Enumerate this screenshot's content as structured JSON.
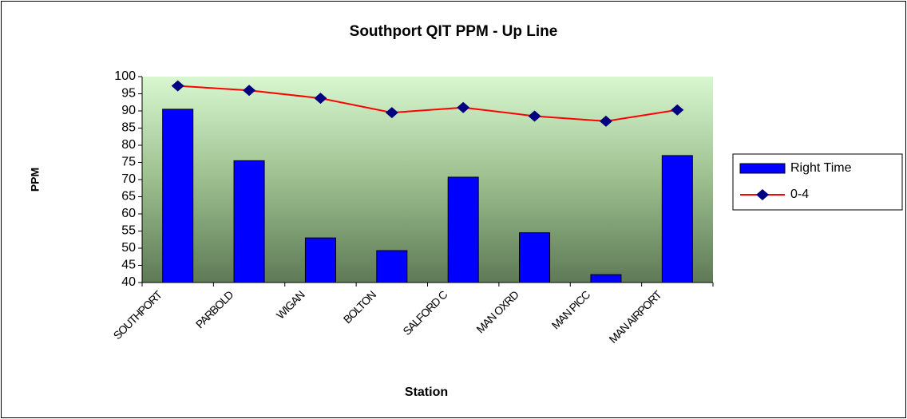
{
  "chart_data": {
    "type": "bar_line",
    "title": "Southport QIT PPM - Up Line",
    "x_label": "Station",
    "y_label": "PPM",
    "categories": [
      "SOUTHPORT",
      "PARBOLD",
      "WIGAN",
      "BOLTON",
      "SALFORD C",
      "MAN OXRD",
      "MAN PICC",
      "MAN AIRPORT"
    ],
    "series": [
      {
        "name": "Right Time",
        "type": "bar",
        "color": "#0000ff",
        "values": [
          90.5,
          75.5,
          53,
          49.3,
          70.7,
          54.5,
          42.3,
          77
        ]
      },
      {
        "name": "0-4",
        "type": "line",
        "color": "#ff0000",
        "marker_color": "#000080",
        "values": [
          97.3,
          96,
          93.7,
          89.5,
          91,
          88.5,
          87,
          90.3
        ]
      }
    ],
    "ylim": [
      40,
      100
    ],
    "yticks": [
      40,
      45,
      50,
      55,
      60,
      65,
      70,
      75,
      80,
      85,
      90,
      95,
      100
    ],
    "legend": "right"
  }
}
